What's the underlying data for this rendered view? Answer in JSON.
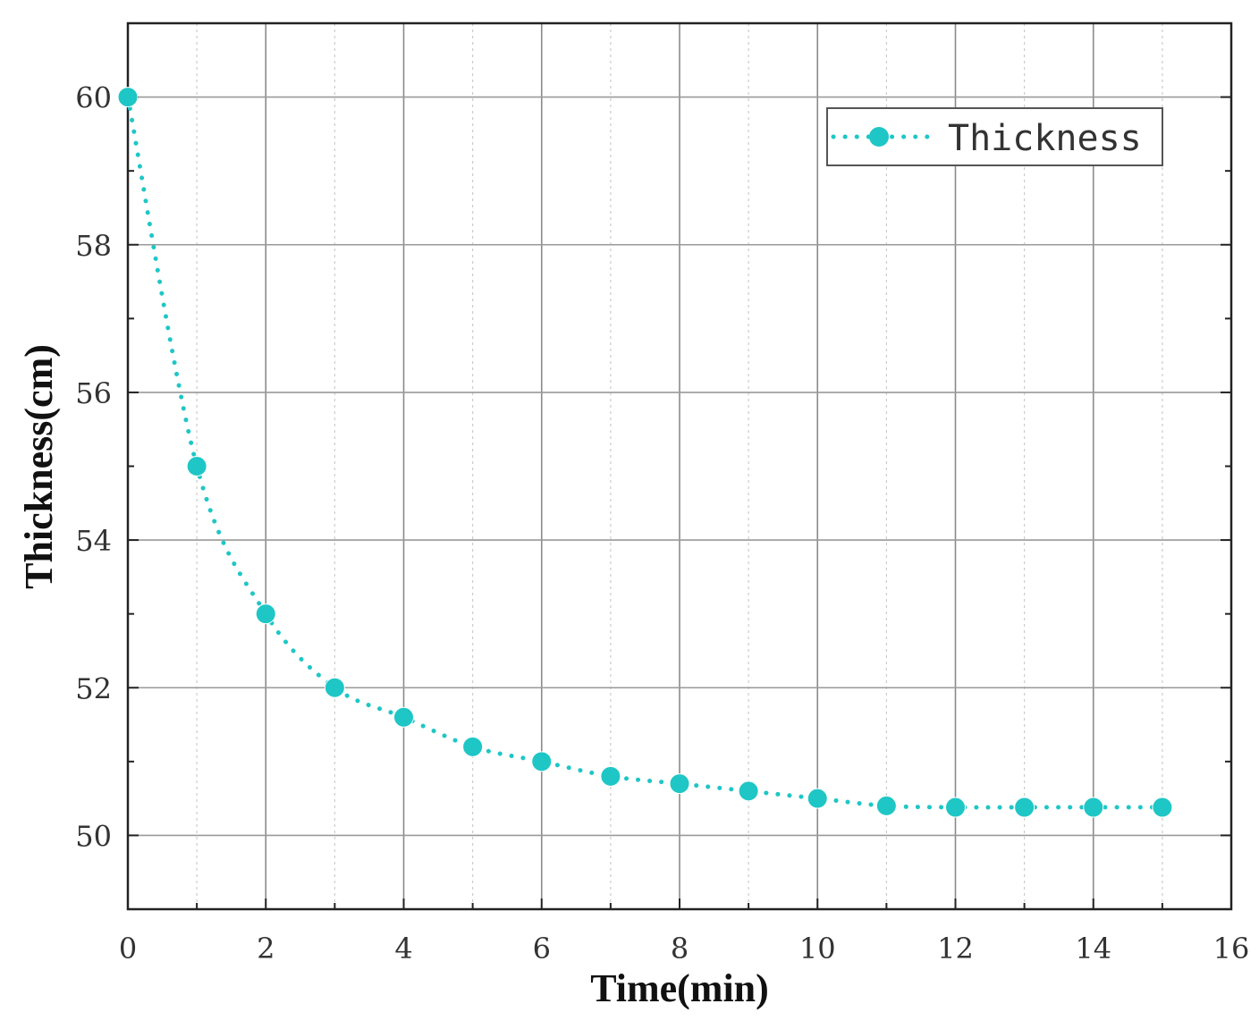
{
  "chart_data": {
    "type": "line",
    "xlabel": "Time(min)",
    "ylabel": "Thickness(cm)",
    "xlim": [
      0,
      16
    ],
    "ylim": [
      49,
      61
    ],
    "xticks": [
      0,
      2,
      4,
      6,
      8,
      10,
      12,
      14,
      16
    ],
    "yticks": [
      50,
      52,
      54,
      56,
      58,
      60
    ],
    "grid": true,
    "legend_position": "top-right",
    "line_style": "dotted",
    "marker": "circle",
    "color": "#1fc6c6",
    "series": [
      {
        "name": "Thickness",
        "x": [
          0,
          1,
          2,
          3,
          4,
          5,
          6,
          7,
          8,
          9,
          10,
          11,
          12,
          13,
          14,
          15
        ],
        "values": [
          60,
          55,
          53,
          52,
          51.6,
          51.2,
          51,
          50.8,
          50.7,
          50.6,
          50.5,
          50.4,
          50.38,
          50.38,
          50.38,
          50.38
        ]
      }
    ]
  }
}
